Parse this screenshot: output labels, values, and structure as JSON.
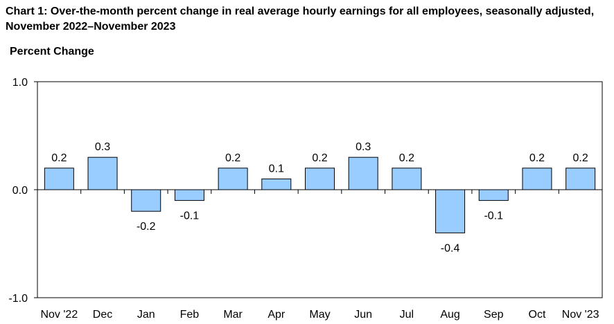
{
  "title": "Chart 1: Over-the-month percent change in real average hourly earnings for all employees, seasonally adjusted, November 2022–November 2023",
  "colors": {
    "bar_fill": "#99ccff",
    "bar_stroke": "#000000",
    "axis": "#000000"
  },
  "chart_data": {
    "type": "bar",
    "title": "Chart 1: Over-the-month percent change in real average hourly earnings for all employees, seasonally adjusted, November 2022–November 2023",
    "xlabel": "",
    "ylabel": "Percent Change",
    "ylim": [
      -1.0,
      1.0
    ],
    "yticks": [
      "1.0",
      "0.0",
      "-1.0"
    ],
    "ytick_values": [
      1.0,
      0.0,
      -1.0
    ],
    "grid": false,
    "legend": "none",
    "categories": [
      "Nov '22",
      "Dec",
      "Jan",
      "Feb",
      "Mar",
      "Apr",
      "May",
      "Jun",
      "Jul",
      "Aug",
      "Sep",
      "Oct",
      "Nov '23"
    ],
    "values": [
      0.2,
      0.3,
      -0.2,
      -0.1,
      0.2,
      0.1,
      0.2,
      0.3,
      0.2,
      -0.4,
      -0.1,
      0.2,
      0.2
    ],
    "data_labels": [
      "0.2",
      "0.3",
      "-0.2",
      "-0.1",
      "0.2",
      "0.1",
      "0.2",
      "0.3",
      "0.2",
      "-0.4",
      "-0.1",
      "0.2",
      "0.2"
    ]
  }
}
